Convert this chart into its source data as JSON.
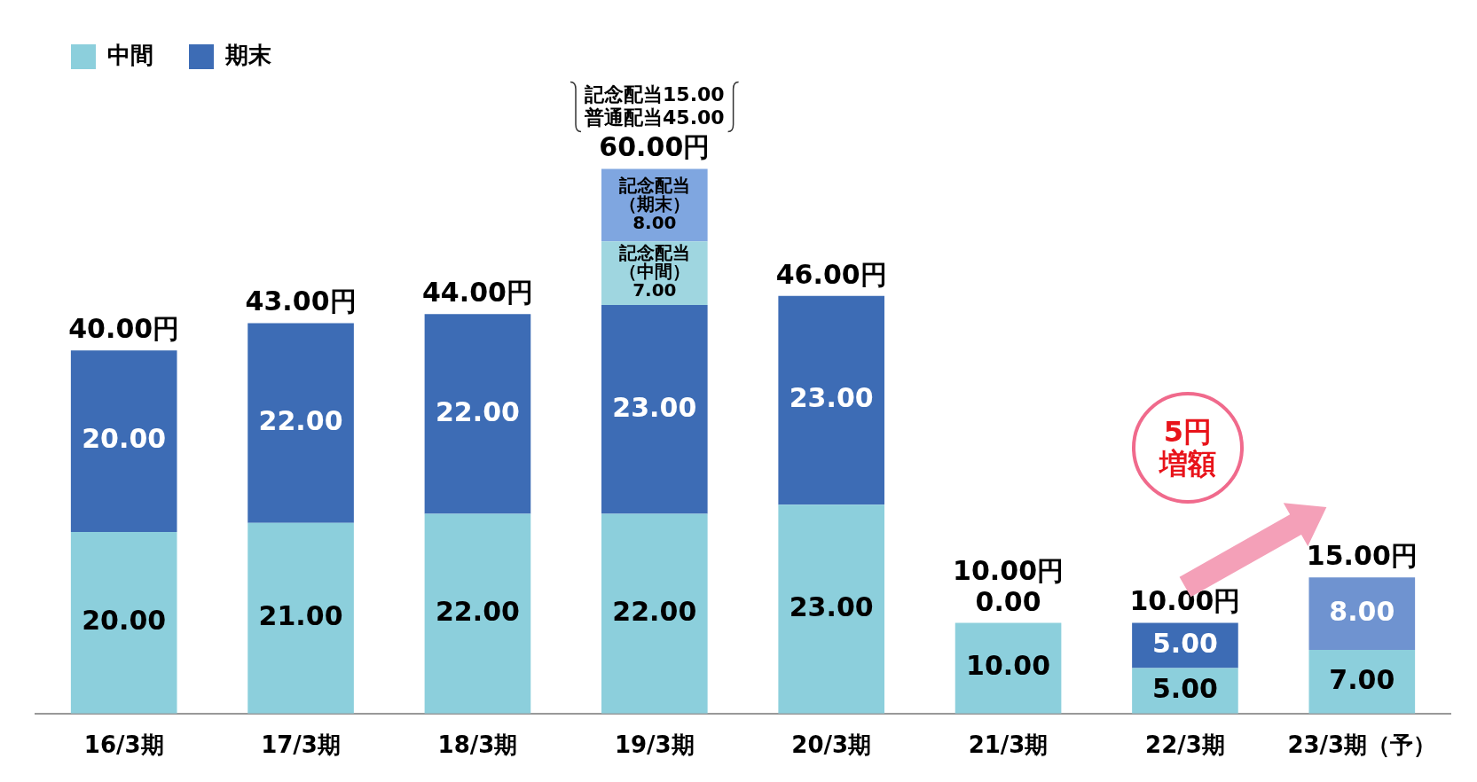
{
  "chart_data": {
    "type": "bar",
    "stacked": true,
    "legend": "top left",
    "tick_labels": "x",
    "categories": [
      "16/3期",
      "17/3期",
      "18/3期",
      "19/3期",
      "20/3期",
      "21/3期",
      "22/3期",
      "23/3期（予）"
    ],
    "series": [
      {
        "name": "中間",
        "color": "#8ccfdc",
        "values": [
          20,
          21,
          22,
          22,
          23,
          10,
          5,
          7
        ],
        "value_labels": [
          "20.00",
          "21.00",
          "22.00",
          "22.00",
          "23.00",
          "10.00",
          "5.00",
          "7.00"
        ]
      },
      {
        "name": "期末",
        "color": "#3d6cb5",
        "colors": [
          "#3d6cb5",
          "#3d6cb5",
          "#3d6cb5",
          "#3d6cb5",
          "#3d6cb5",
          "#3d6cb5",
          "#3d6cb5",
          "#6f93d0"
        ],
        "values": [
          20,
          22,
          22,
          23,
          23,
          0,
          5,
          8
        ],
        "value_labels": [
          "20.00",
          "22.00",
          "22.00",
          "23.00",
          "23.00",
          "0.00",
          "5.00",
          "8.00"
        ]
      },
      {
        "color": "#9fd6e0",
        "values": [
          null,
          null,
          null,
          7,
          null,
          null,
          null,
          null
        ],
        "value_labels": [
          null,
          null,
          null,
          "記念配当（中間）7.00",
          null,
          null,
          null,
          null
        ]
      },
      {
        "color": "#7fa6e0",
        "values": [
          null,
          null,
          null,
          8,
          null,
          null,
          null,
          null
        ],
        "value_labels": [
          null,
          null,
          null,
          "記念配当（期末）8.00",
          null,
          null,
          null,
          null
        ]
      }
    ],
    "totals": [
      "40.00円",
      "43.00円",
      "44.00円",
      "60.00円",
      "46.00円",
      "10.00円",
      "10.00円",
      "15.00円"
    ],
    "annotations": [
      "記念配当15.00\n普通配当45.00",
      "5円増額"
    ]
  }
}
